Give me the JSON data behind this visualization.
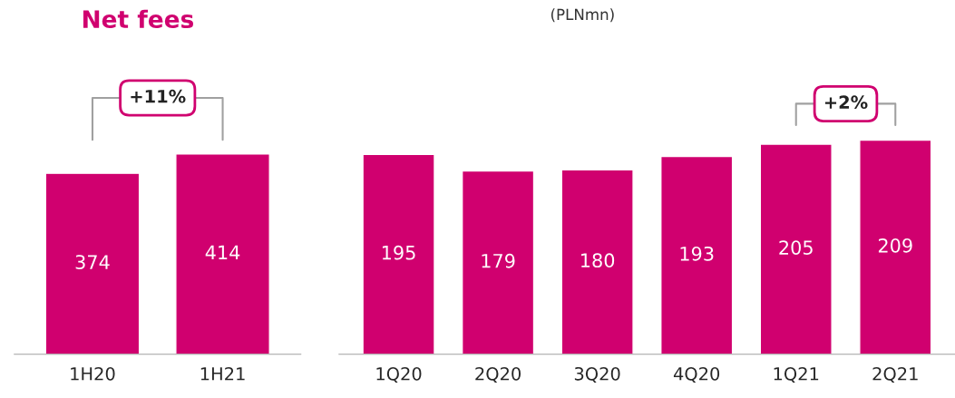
{
  "chart_data": [
    {
      "type": "bar",
      "title": "Net fees",
      "categories": [
        "1H20",
        "1H21"
      ],
      "values": [
        374,
        414
      ],
      "color": "#d0006f",
      "data_labels": true,
      "annotations": [
        "+11%"
      ],
      "grid": false,
      "legend": false
    },
    {
      "type": "bar",
      "subtitle": "(PLNmn)",
      "categories": [
        "1Q20",
        "2Q20",
        "3Q20",
        "4Q20",
        "1Q21",
        "2Q21"
      ],
      "values": [
        195,
        179,
        180,
        193,
        205,
        209
      ],
      "color": "#d0006f",
      "data_labels": true,
      "annotations": [
        "+2%"
      ],
      "grid": false,
      "legend": false
    }
  ]
}
